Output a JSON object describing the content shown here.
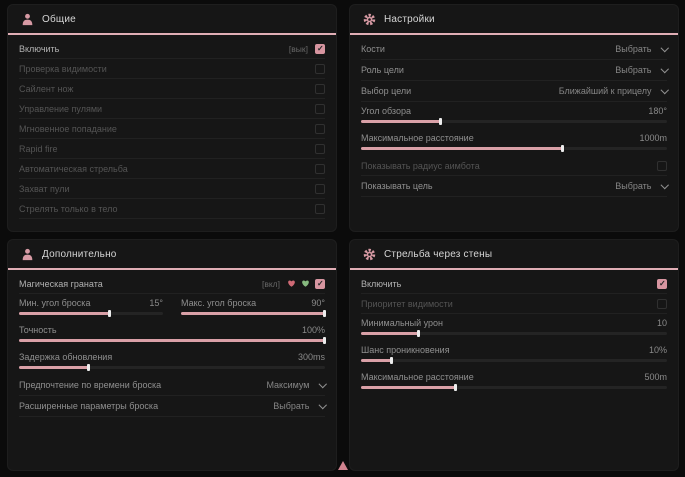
{
  "window": {
    "bg": "#0b0b0b",
    "accent": "#d9a0a7",
    "header_line": "#e0aeb5"
  },
  "panels": {
    "general": {
      "title": "Общие",
      "icon": "person-icon",
      "rows": [
        {
          "label": "Включить",
          "state": "[вык]",
          "checked": true
        },
        {
          "label": "Проверка видимости",
          "checked": false
        },
        {
          "label": "Сайлент нож",
          "checked": false
        },
        {
          "label": "Управление пулями",
          "checked": false
        },
        {
          "label": "Мгновенное попадание",
          "checked": false
        },
        {
          "label": "Rapid fire",
          "checked": false
        },
        {
          "label": "Автоматическая стрельба",
          "checked": false
        },
        {
          "label": "Захват пули",
          "checked": false
        },
        {
          "label": "Стрелять только в тело",
          "checked": false
        }
      ]
    },
    "settings": {
      "title": "Настройки",
      "icon": "gear-icon",
      "rows": [
        {
          "label": "Кости",
          "value": "Выбрать",
          "type": "dropdown"
        },
        {
          "label": "Роль цели",
          "value": "Выбрать",
          "type": "dropdown"
        },
        {
          "label": "Выбор цели",
          "value": "Ближайший к прицелу",
          "type": "dropdown"
        },
        {
          "label": "Угол обзора",
          "value": "180°",
          "type": "slider",
          "fill": 26
        },
        {
          "label": "Максимальное расстояние",
          "value": "1000m",
          "type": "slider",
          "fill": 66
        },
        {
          "label": "Показывать радиус аимбота",
          "checked": false,
          "disabled": true,
          "type": "checkbox"
        },
        {
          "label": "Показывать цель",
          "value": "Выбрать",
          "type": "dropdown"
        }
      ]
    },
    "additional": {
      "title": "Дополнительно",
      "icon": "person-icon",
      "rows": [
        {
          "label": "Магическая граната",
          "state": "[вкл]",
          "checked": true,
          "icons": [
            "red-heart-icon",
            "green-heart-icon"
          ]
        },
        {
          "label": "Мин. угол броска",
          "value": "15°",
          "type": "slider",
          "fill": 63
        },
        {
          "label": "Макс. угол броска",
          "value": "90°",
          "type": "slider",
          "fill": 100
        },
        {
          "label": "Точность",
          "value": "100%",
          "type": "slider",
          "fill": 100
        },
        {
          "label": "Задержка обновления",
          "value": "300ms",
          "type": "slider",
          "fill": 23
        },
        {
          "label": "Предпочтение по времени броска",
          "value": "Максимум",
          "type": "dropdown"
        },
        {
          "label": "Расширенные параметры броска",
          "value": "Выбрать",
          "type": "dropdown"
        }
      ]
    },
    "wallshot": {
      "title": "Стрельба через стены",
      "icon": "gear-icon",
      "rows": [
        {
          "label": "Включить",
          "checked": true
        },
        {
          "label": "Приоритет видимости",
          "checked": false,
          "disabled": true
        },
        {
          "label": "Минимальный урон",
          "value": "10",
          "type": "slider",
          "fill": 19
        },
        {
          "label": "Шанс проникновения",
          "value": "10%",
          "type": "slider",
          "fill": 10
        },
        {
          "label": "Максимальное расстояние",
          "value": "500m",
          "type": "slider",
          "fill": 31
        }
      ]
    }
  }
}
